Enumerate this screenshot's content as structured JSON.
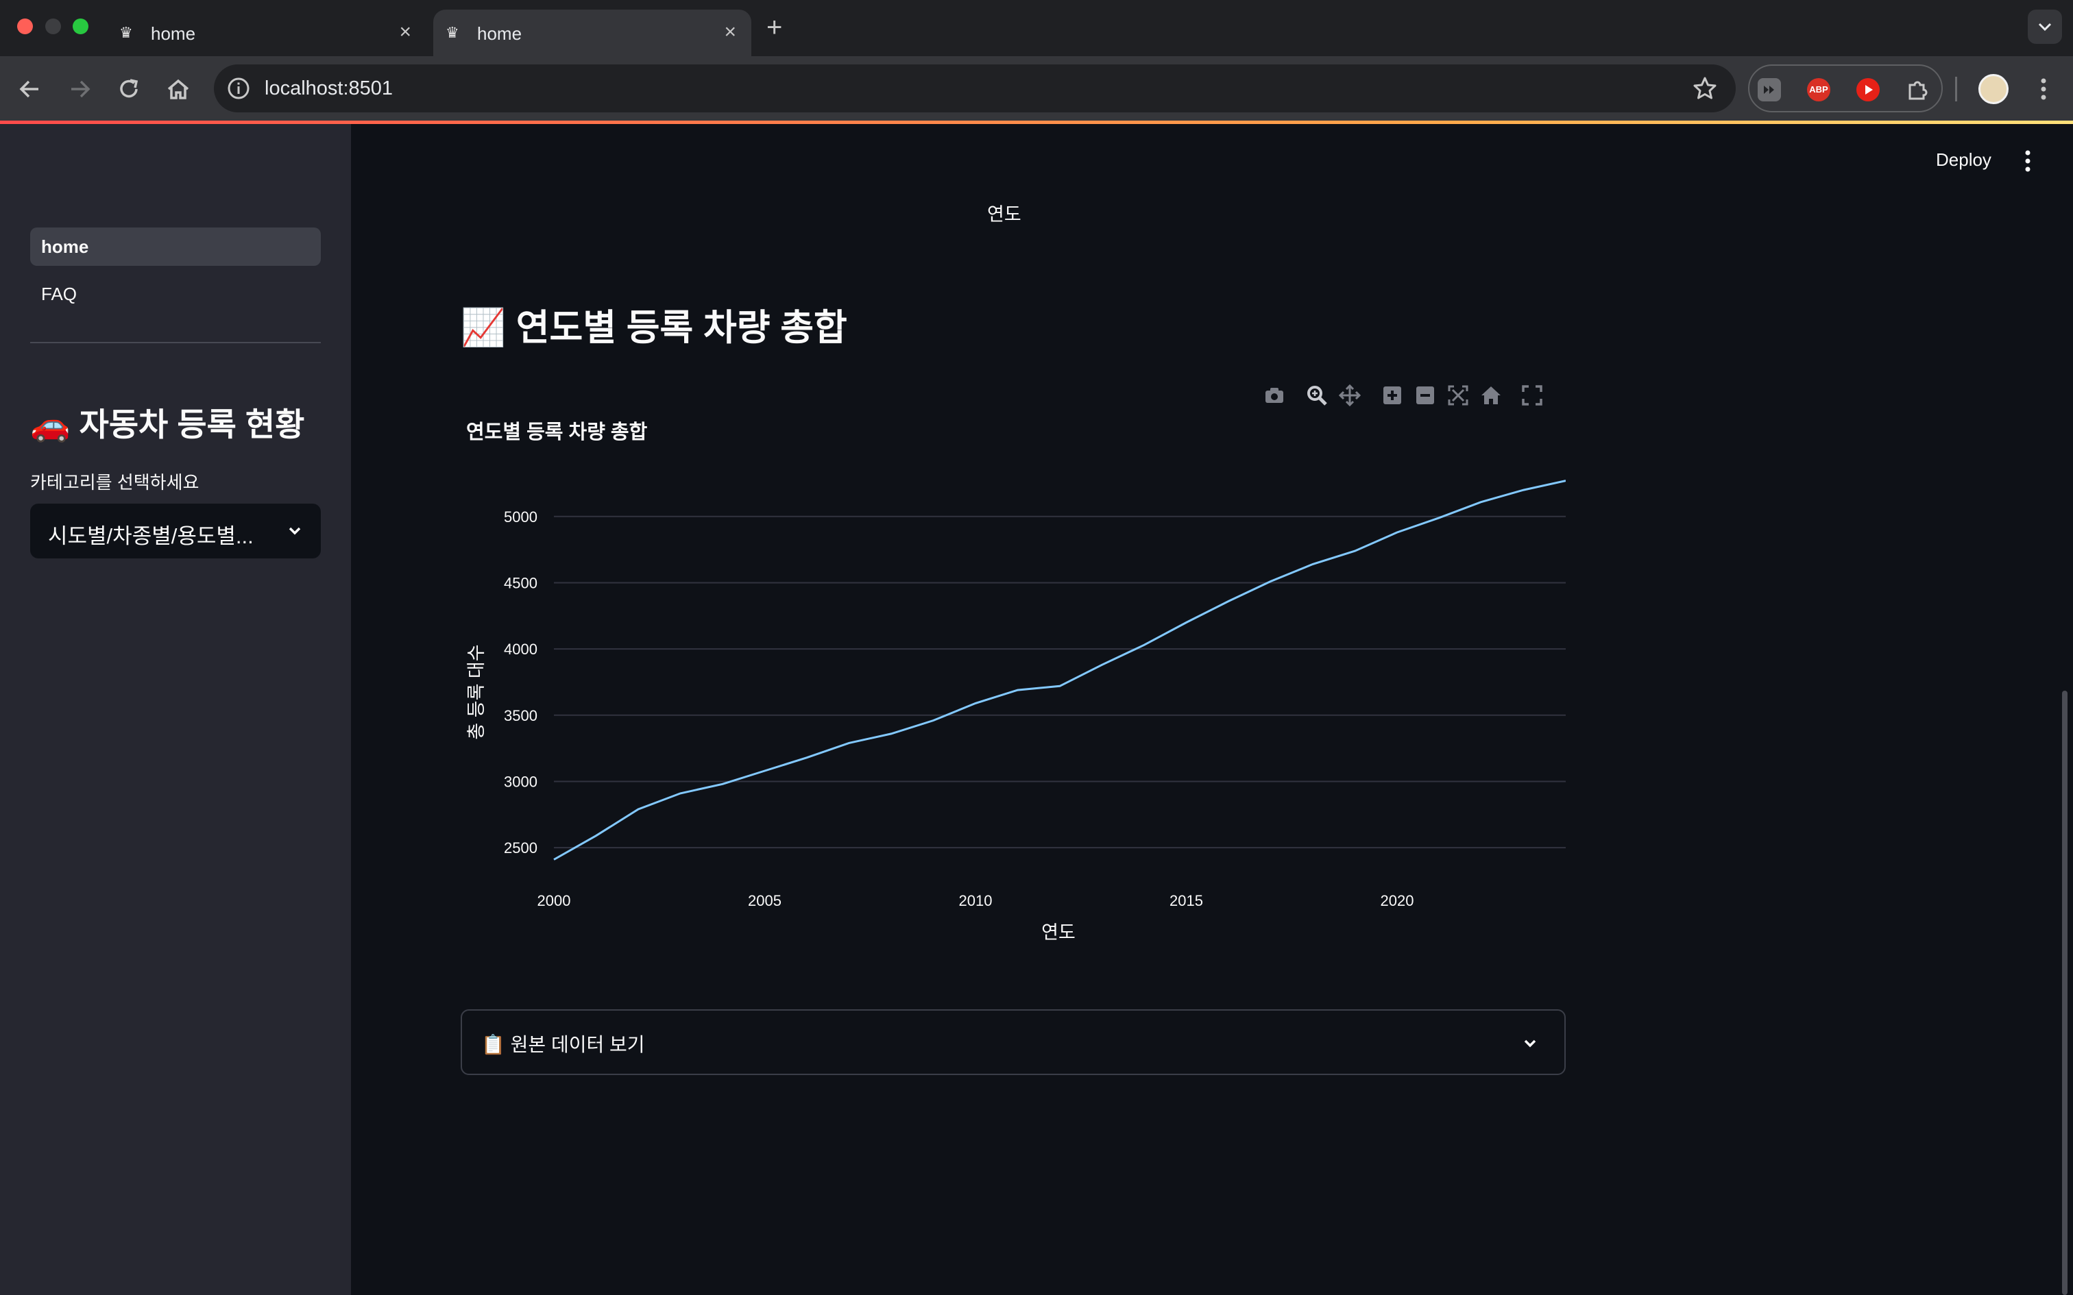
{
  "browser": {
    "tabs": [
      {
        "title": "home",
        "active": false
      },
      {
        "title": "home",
        "active": true
      }
    ],
    "new_tab_symbol": "+",
    "tab_close_symbol": "×",
    "url": "localhost:8501",
    "extensions": [
      "media-ext-icon",
      "adblock-plus-icon",
      "video-ext-icon",
      "puzzle-icon"
    ],
    "abp_label": "ABP"
  },
  "sidebar": {
    "nav": [
      {
        "label": "home",
        "active": true
      },
      {
        "label": "FAQ",
        "active": false
      }
    ],
    "heading": "🚗 자동차 등록 현황",
    "select_label": "카테고리를 선택하세요",
    "select_value": "시도별/차종별/용도별..."
  },
  "header": {
    "deploy_label": "Deploy"
  },
  "main": {
    "previous_chart_xlabel": "연도",
    "title": "📈 연도별 등록 차량 총합",
    "expander_label": "📋 원본 데이터 보기"
  },
  "colors": {
    "background": "#0e1117",
    "sidebar": "#262730",
    "line": "#83c9ff",
    "grid": "#31333f"
  },
  "chart_data": {
    "type": "line",
    "title": "연도별 등록 차량 총합",
    "xlabel": "연도",
    "ylabel": "총 등록 대수",
    "x": [
      2000,
      2001,
      2002,
      2003,
      2004,
      2005,
      2006,
      2007,
      2008,
      2009,
      2010,
      2011,
      2012,
      2013,
      2014,
      2015,
      2016,
      2017,
      2018,
      2019,
      2020,
      2021,
      2022,
      2023,
      2024
    ],
    "series": [
      {
        "name": "",
        "values": [
          2410,
          2590,
          2790,
          2910,
          2980,
          3080,
          3180,
          3290,
          3360,
          3460,
          3590,
          3690,
          3720,
          3880,
          4030,
          4200,
          4360,
          4510,
          4640,
          4740,
          4880,
          4990,
          5110,
          5200,
          5270
        ]
      }
    ],
    "xticks": [
      2000,
      2005,
      2010,
      2015,
      2020
    ],
    "yticks": [
      2500,
      3000,
      3500,
      4000,
      4500,
      5000
    ],
    "xlim": [
      2000,
      2024
    ],
    "ylim": [
      2330,
      5330
    ],
    "grid": true,
    "legend": "none"
  }
}
